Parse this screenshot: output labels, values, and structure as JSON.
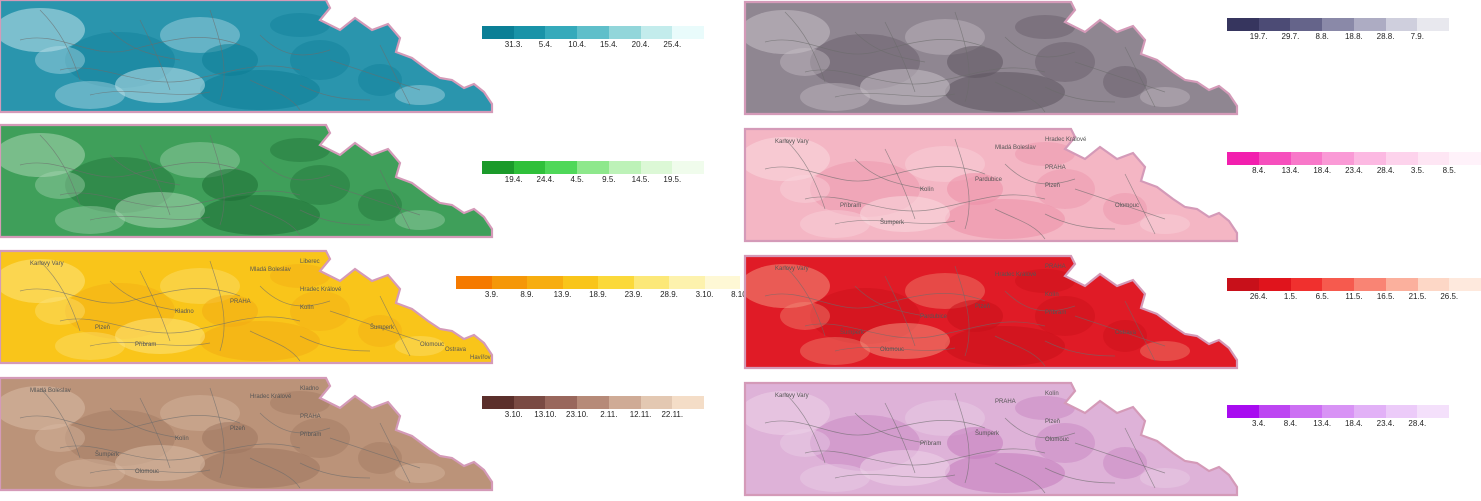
{
  "maps": [
    {
      "id": "teal",
      "palette": [
        "#0b7f96",
        "#1993a8",
        "#35aabb",
        "#5fbfca",
        "#92d6da",
        "#c3ecec",
        "#e9fbfb"
      ],
      "fill": "#2a95ad",
      "light": "#bfe2ea",
      "dark": "#0d7d96",
      "labels": [],
      "ticks": [
        "31.3.",
        "5.4.",
        "10.4.",
        "15.4.",
        "20.4.",
        "25.4."
      ]
    },
    {
      "id": "slate",
      "palette": [
        "#36355e",
        "#4c4b75",
        "#65648a",
        "#8a89a8",
        "#adacc3",
        "#cfcfdd",
        "#e8e8ee"
      ],
      "fill": "#8f8691",
      "light": "#c7c0c7",
      "dark": "#5f5561",
      "labels": [],
      "ticks": [
        "19.7.",
        "29.7.",
        "8.8.",
        "18.8.",
        "28.8.",
        "7.9."
      ]
    },
    {
      "id": "green",
      "palette": [
        "#1b9a2a",
        "#2fc03a",
        "#4fd859",
        "#8ee88c",
        "#bdf2b8",
        "#dcf8d6",
        "#f0fcec"
      ],
      "fill": "#3f9f5a",
      "light": "#a9d6b3",
      "dark": "#1d6e35",
      "labels": [],
      "ticks": [
        "19.4.",
        "24.4.",
        "4.5.",
        "9.5.",
        "14.5.",
        "19.5."
      ]
    },
    {
      "id": "pink",
      "palette": [
        "#f21fae",
        "#f64fbd",
        "#f878c9",
        "#fa9ad6",
        "#fcb9e2",
        "#fdd3ec",
        "#fee6f4",
        "#fff2fa"
      ],
      "fill": "#f4b6c4",
      "light": "#fad8df",
      "dark": "#ec8fa7",
      "labels": [
        "Karlovy Vary",
        "Mladá Boleslav",
        "Hradec Králové",
        "PRAHA",
        "Kolín",
        "Pardubice",
        "Plzeň",
        "Příbram",
        "Šumperk",
        "Olomouc"
      ],
      "ticks": [
        "8.4.",
        "13.4.",
        "18.4.",
        "23.4.",
        "28.4.",
        "3.5.",
        "8.5."
      ]
    },
    {
      "id": "yellow",
      "palette": [
        "#f57a00",
        "#f59708",
        "#f7ad10",
        "#f9c51a",
        "#fbd93a",
        "#fce878",
        "#fdf2ad",
        "#fef8d5"
      ],
      "fill": "#f9c51a",
      "light": "#fde37e",
      "dark": "#f2ab14",
      "labels": [
        "Karlovy Vary",
        "Mladá Boleslav",
        "Liberec",
        "Hradec Králové",
        "Kladno",
        "PRAHA",
        "Kolín",
        "Plzeň",
        "Příbram",
        "Šumperk",
        "Olomouc",
        "Ostrava",
        "Havířov"
      ],
      "ticks": [
        "3.9.",
        "8.9.",
        "13.9.",
        "18.9.",
        "23.9.",
        "28.9.",
        "3.10.",
        "8.10."
      ]
    },
    {
      "id": "red",
      "palette": [
        "#c8101a",
        "#e0141c",
        "#f0302e",
        "#f65a4e",
        "#f98474",
        "#fbb09d",
        "#fdd7c6",
        "#fee9dd"
      ],
      "fill": "#e01b26",
      "light": "#f3907b",
      "dark": "#c8101a",
      "labels": [
        "Karlovy Vary",
        "Hradec Králové",
        "PRAHA",
        "Kolín",
        "Pardubice",
        "Plzeň",
        "Příbram",
        "Šumperk",
        "Olomouc",
        "Ostrava"
      ],
      "ticks": [
        "26.4.",
        "1.5.",
        "6.5.",
        "11.5.",
        "16.5.",
        "21.5.",
        "26.5."
      ]
    },
    {
      "id": "brown",
      "palette": [
        "#5b2f2b",
        "#7a4a43",
        "#99675c",
        "#b68a78",
        "#cfab96",
        "#e3c8b2",
        "#f4ddc7"
      ],
      "fill": "#bb9379",
      "light": "#d9bca6",
      "dark": "#9e7660",
      "labels": [
        "Mladá Boleslav",
        "Hradec Králové",
        "Kladno",
        "PRAHA",
        "Kolín",
        "Plzeň",
        "Příbram",
        "Šumperk",
        "Olomouc"
      ],
      "ticks": [
        "3.10.",
        "13.10.",
        "23.10.",
        "2.11.",
        "12.11.",
        "22.11."
      ]
    },
    {
      "id": "purple",
      "palette": [
        "#a80bf0",
        "#bd45f2",
        "#cc70f3",
        "#d893f5",
        "#e2b1f7",
        "#eccbf9",
        "#f4e0fb"
      ],
      "fill": "#deb2d8",
      "light": "#ecd1e8",
      "dark": "#c47bbd",
      "labels": [
        "Karlovy Vary",
        "PRAHA",
        "Kolín",
        "Plzeň",
        "Příbram",
        "Šumperk",
        "Olomouc"
      ],
      "ticks": [
        "3.4.",
        "8.4.",
        "13.4.",
        "18.4.",
        "23.4.",
        "28.4."
      ]
    }
  ]
}
